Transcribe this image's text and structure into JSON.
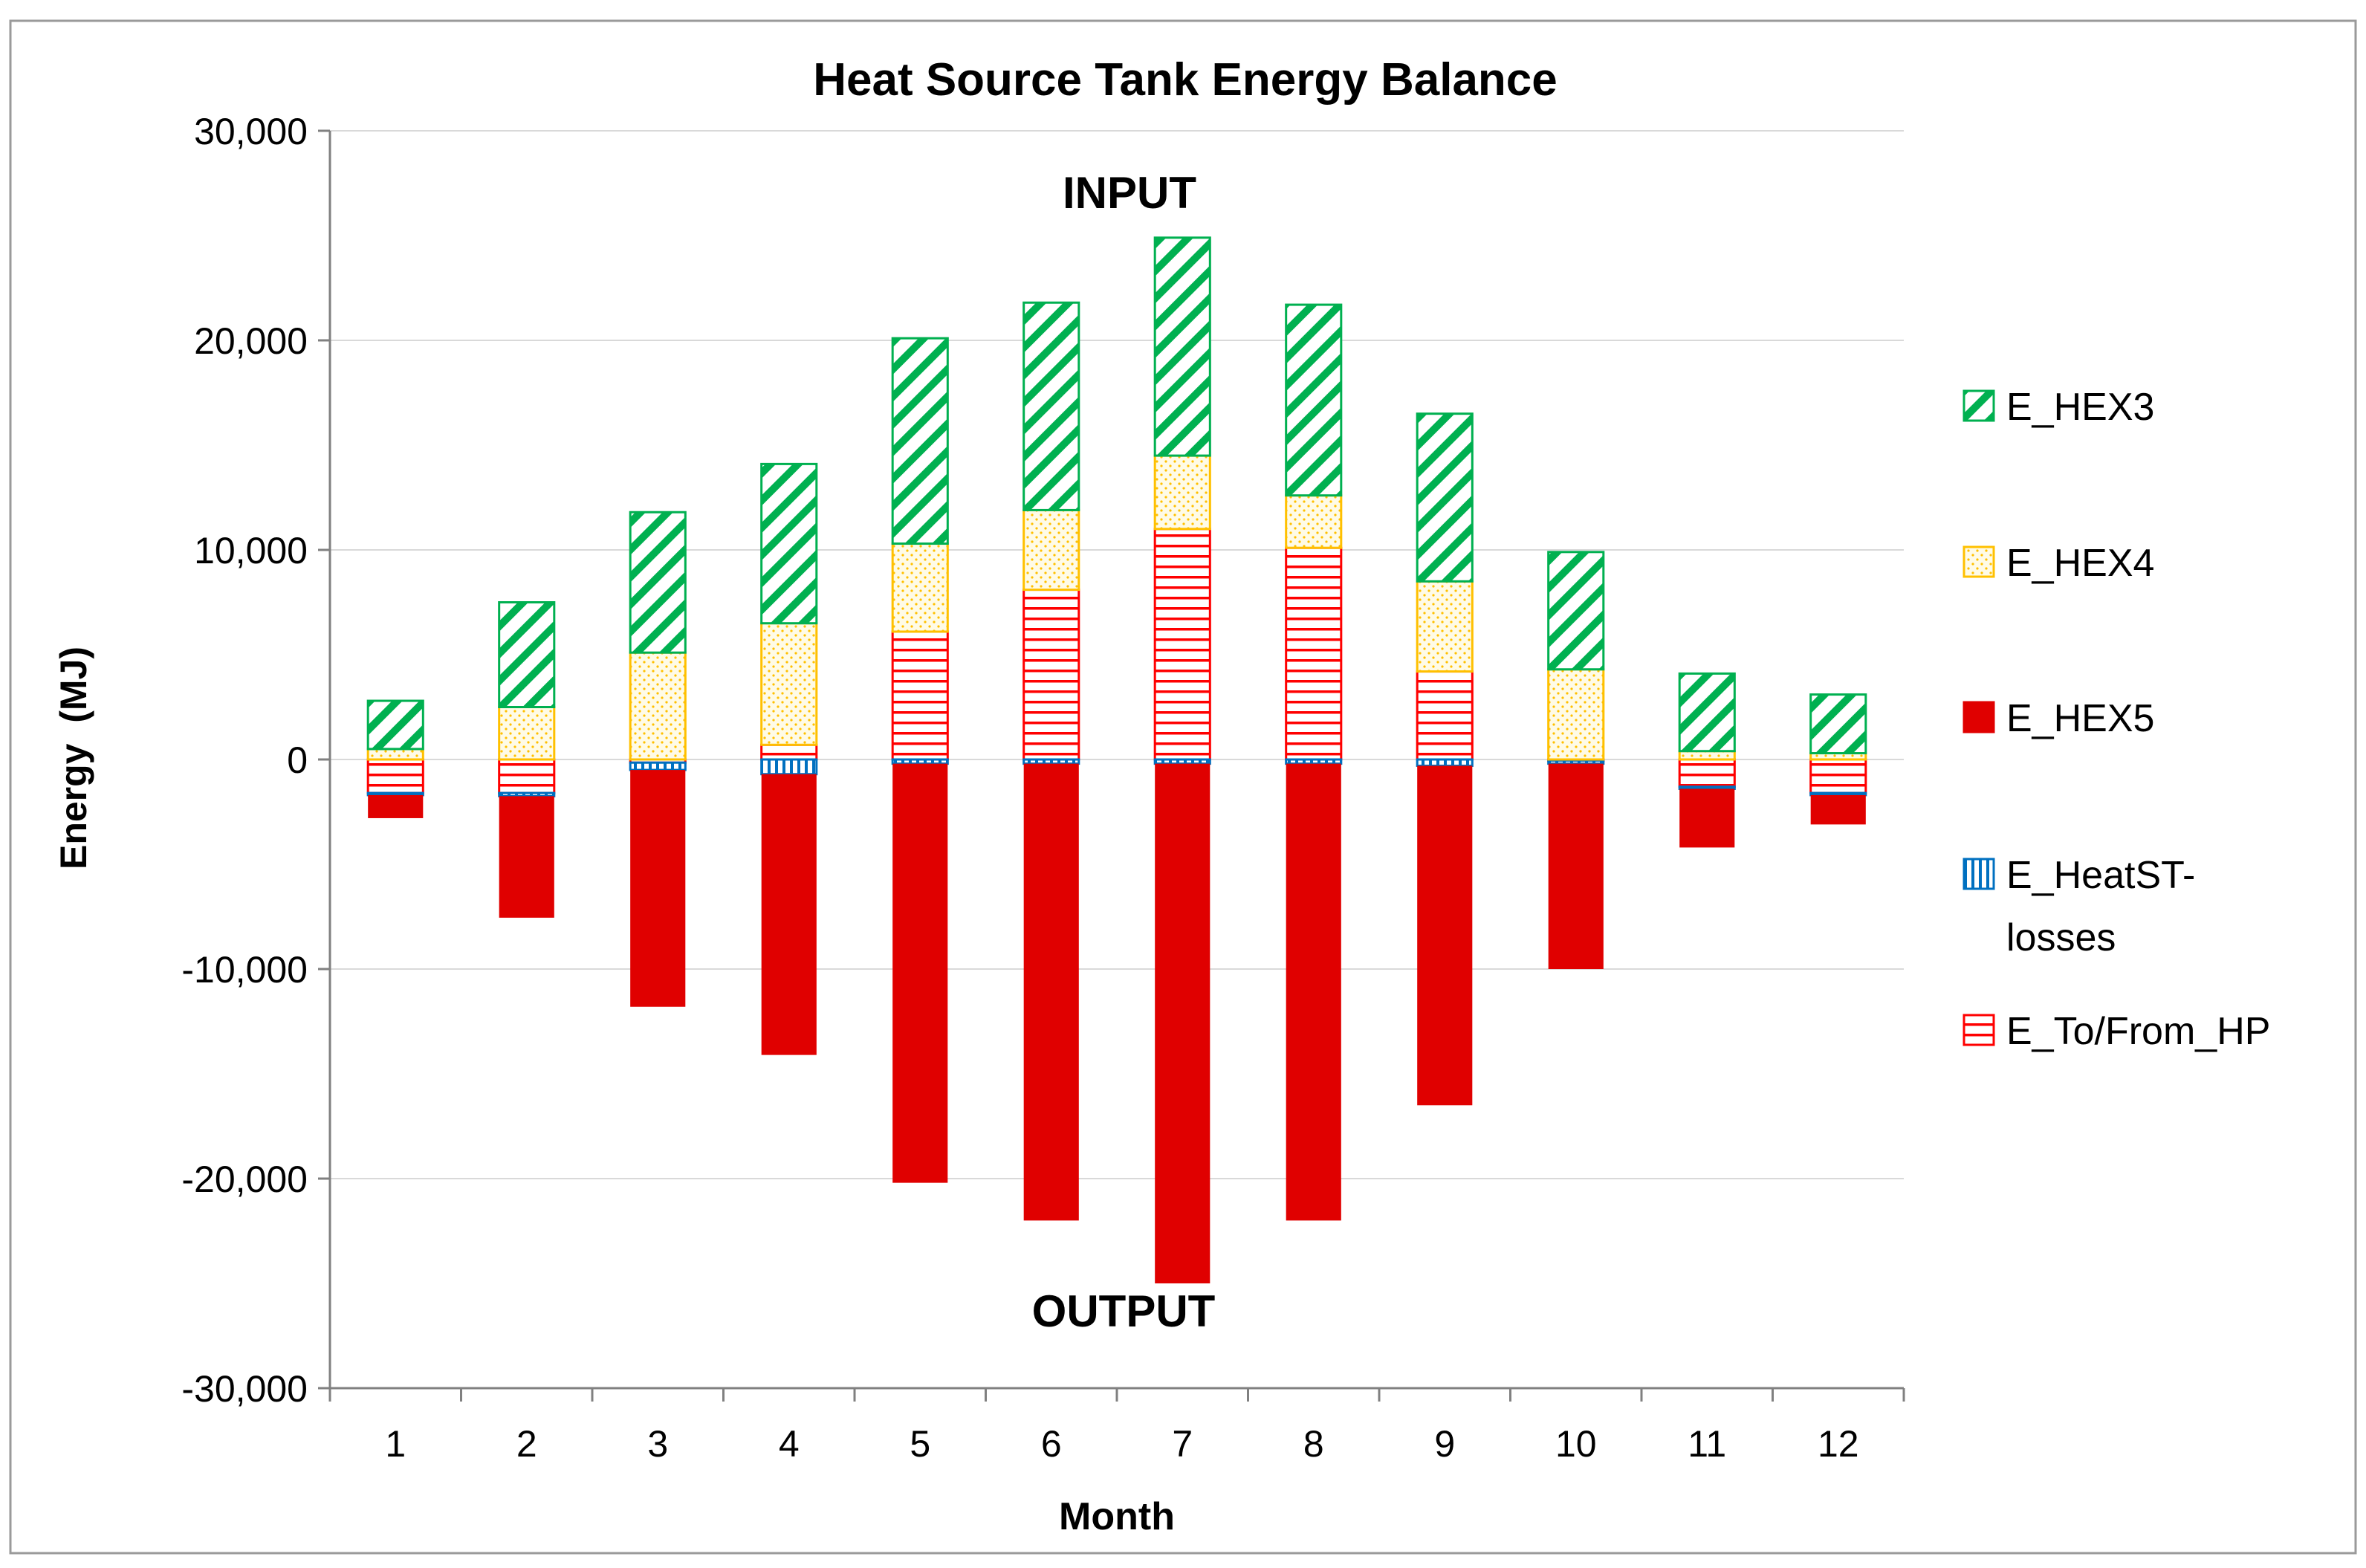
{
  "chart_data": {
    "type": "bar",
    "stacked": true,
    "title": "Heat Source Tank Energy Balance",
    "xlabel": "Month",
    "ylabel": "Energy  (MJ)",
    "ylim": [
      -30000,
      30000
    ],
    "yticks": [
      30000,
      20000,
      10000,
      0,
      -10000,
      -20000,
      -30000
    ],
    "ytick_labels": [
      "30,000",
      "20,000",
      "10,000",
      "0",
      "-10,000",
      "-20,000",
      "-30,000"
    ],
    "categories": [
      "1",
      "2",
      "3",
      "4",
      "5",
      "6",
      "7",
      "8",
      "9",
      "10",
      "11",
      "12"
    ],
    "grid": "horizontal",
    "legend_position": "right",
    "annotations": {
      "input": "INPUT",
      "output": "OUTPUT"
    },
    "series": [
      {
        "name": "E_To/From_HP",
        "color": "#ff0000",
        "pattern": "horizontal-lines",
        "values": [
          -1600,
          -1600,
          -150,
          700,
          6100,
          8100,
          11000,
          10100,
          4200,
          -50,
          -1300,
          -1600
        ]
      },
      {
        "name": "E_HeatST-\nlosses",
        "legend_lines": [
          "E_HeatST-",
          "losses"
        ],
        "color": "#0070c0",
        "pattern": "vertical-lines",
        "values": [
          -100,
          -150,
          -350,
          -700,
          -200,
          -200,
          -200,
          -200,
          -300,
          -150,
          -100,
          -100
        ]
      },
      {
        "name": "E_HEX5",
        "color": "#e00000",
        "pattern": "solid",
        "values": [
          -1100,
          -5800,
          -11300,
          -13400,
          -20000,
          -21800,
          -24800,
          -21800,
          -16200,
          -9800,
          -2800,
          -1400
        ]
      },
      {
        "name": "E_HEX4",
        "color": "#ffc000",
        "pattern": "dotted",
        "values": [
          500,
          2500,
          5100,
          5800,
          4200,
          3800,
          3500,
          2500,
          4300,
          4300,
          400,
          300
        ]
      },
      {
        "name": "E_HEX3",
        "color": "#00b050",
        "pattern": "diagonal",
        "values": [
          2300,
          5000,
          6700,
          7600,
          9800,
          9900,
          10400,
          9100,
          8000,
          5600,
          3700,
          2800
        ]
      }
    ],
    "legend_order": [
      "E_HEX3",
      "E_HEX4",
      "E_HEX5",
      "E_HeatST-\nlosses",
      "E_To/From_HP"
    ]
  }
}
